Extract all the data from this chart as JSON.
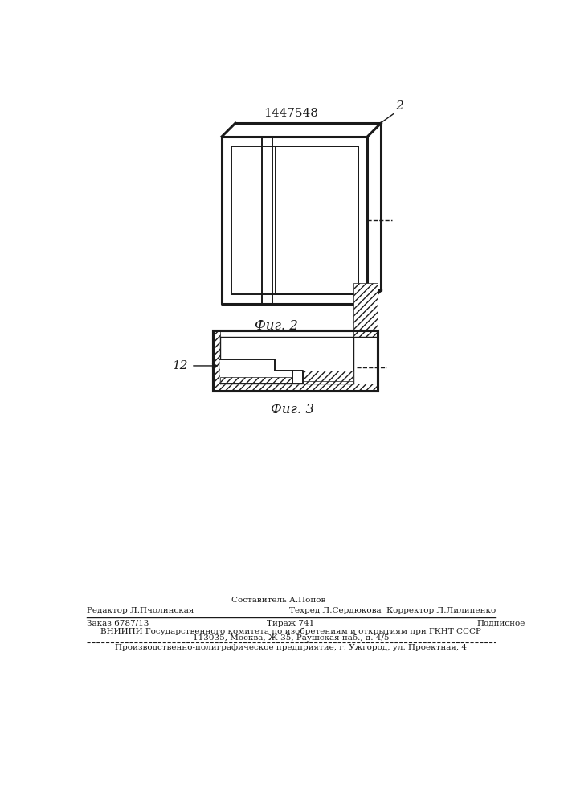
{
  "patent_number": "1447548",
  "fig2_label": "Фиг. 2",
  "fig3_label": "Фиг. 3",
  "label_2": "2",
  "label_12": "12",
  "footer_line1_center": "Составитель А.Попов",
  "footer_line1_left": "Редактор Л.Пчолинская",
  "footer_line1_right": "Техред Л.Сердюкова  Корректор Л.Лилипенко",
  "footer_line2_left": "Заказ 6787/13",
  "footer_line2_center": "Тираж 741",
  "footer_line2_right": "Подписное",
  "footer_line3": "ВНИИПИ Государственного комитета по изобретениям и открытиям при ГКНТ СССР",
  "footer_line4": "113035, Москва, Ж-35, Раушская наб., д. 4/5",
  "footer_line5": "Производственно-полиграфическое предприятие, г. Ужгород, ул. Проектная, 4",
  "line_color": "#1a1a1a"
}
